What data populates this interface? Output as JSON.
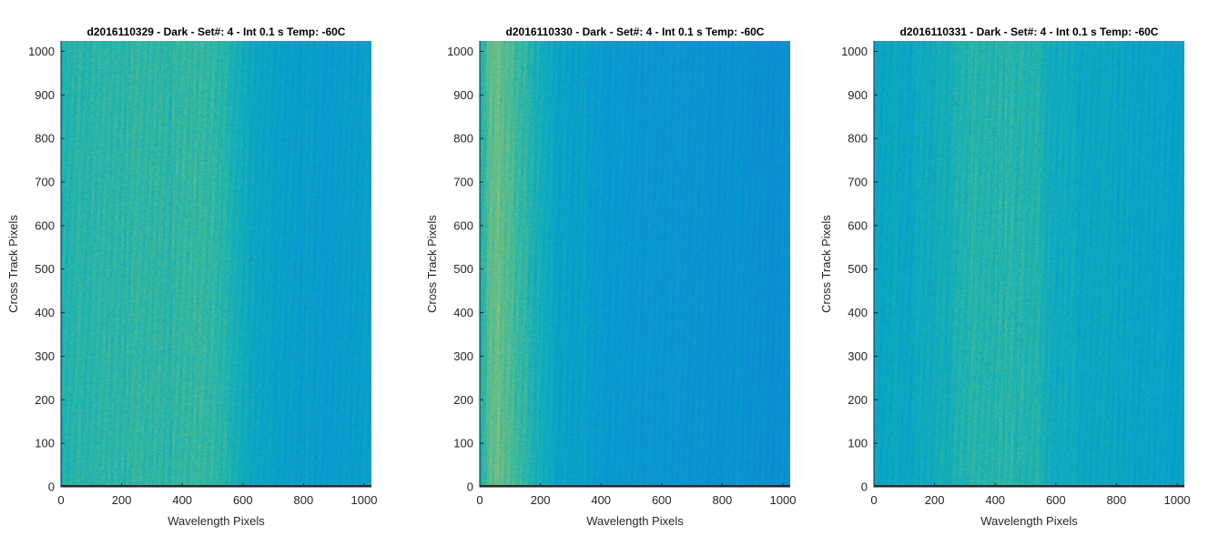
{
  "figure": {
    "background": "#ffffff"
  },
  "chart_data": [
    {
      "type": "heatmap",
      "title": "d2016110329 - Dark - Set#: 4 - Int 0.1 s Temp: -60C",
      "xlabel": "Wavelength Pixels",
      "ylabel": "Cross Track Pixels",
      "xlim": [
        0,
        1024
      ],
      "ylim": [
        0,
        1024
      ],
      "xticks": [
        0,
        200,
        400,
        600,
        800,
        1000
      ],
      "yticks": [
        0,
        100,
        200,
        300,
        400,
        500,
        600,
        700,
        800,
        900,
        1000
      ],
      "colormap": "parula",
      "column_profile": {
        "x": [
          0,
          100,
          200,
          300,
          350,
          400,
          450,
          500,
          550,
          600,
          650,
          700,
          800,
          900,
          1024
        ],
        "level": [
          0.56,
          0.58,
          0.58,
          0.59,
          0.58,
          0.59,
          0.6,
          0.6,
          0.57,
          0.52,
          0.49,
          0.47,
          0.46,
          0.45,
          0.46
        ]
      }
    },
    {
      "type": "heatmap",
      "title": "d2016110330 - Dark - Set#: 4 - Int 0.1 s Temp: -60C",
      "xlabel": "Wavelength Pixels",
      "ylabel": "Cross Track Pixels",
      "xlim": [
        0,
        1024
      ],
      "ylim": [
        0,
        1024
      ],
      "xticks": [
        0,
        200,
        400,
        600,
        800,
        1000
      ],
      "yticks": [
        0,
        100,
        200,
        300,
        400,
        500,
        600,
        700,
        800,
        900,
        1000
      ],
      "colormap": "parula",
      "column_profile": {
        "x": [
          0,
          30,
          60,
          100,
          150,
          200,
          250,
          300,
          400,
          500,
          600,
          700,
          800,
          900,
          1024
        ],
        "level": [
          0.55,
          0.64,
          0.67,
          0.63,
          0.58,
          0.53,
          0.49,
          0.47,
          0.45,
          0.43,
          0.42,
          0.42,
          0.41,
          0.4,
          0.4
        ]
      }
    },
    {
      "type": "heatmap",
      "title": "d2016110331 - Dark - Set#: 4 - Int 0.1 s Temp: -60C",
      "xlabel": "Wavelength Pixels",
      "ylabel": "Cross Track Pixels",
      "xlim": [
        0,
        1024
      ],
      "ylim": [
        0,
        1024
      ],
      "xticks": [
        0,
        200,
        400,
        600,
        800,
        1000
      ],
      "yticks": [
        0,
        100,
        200,
        300,
        400,
        500,
        600,
        700,
        800,
        900,
        1000
      ],
      "colormap": "parula",
      "column_profile": {
        "x": [
          0,
          100,
          200,
          300,
          350,
          400,
          450,
          500,
          550,
          600,
          700,
          800,
          900,
          1024
        ],
        "level": [
          0.5,
          0.5,
          0.52,
          0.56,
          0.58,
          0.57,
          0.58,
          0.57,
          0.55,
          0.52,
          0.5,
          0.49,
          0.48,
          0.48
        ]
      }
    }
  ]
}
